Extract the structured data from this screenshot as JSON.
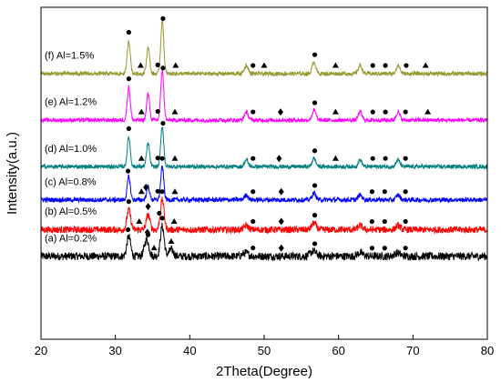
{
  "chart_data": {
    "type": "line",
    "title": "",
    "xlabel": "2Theta(Degree)",
    "ylabel": "Intensity(a.u.)",
    "xlim": [
      20,
      80
    ],
    "x_ticks": [
      20,
      30,
      40,
      50,
      60,
      70,
      80
    ],
    "y_ticks_shown": false,
    "grid": false,
    "legend": "none",
    "marker_legend": {
      "circle": "●",
      "triangle": "▲",
      "diamond": "◆"
    },
    "series": [
      {
        "name": "(a) Al=0.2%",
        "color": "#000000",
        "baseline": 0.25,
        "noise": 0.012,
        "peaks": [
          [
            31.8,
            0.06,
            0.25
          ],
          [
            34.2,
            0.05,
            0.3
          ],
          [
            36.3,
            0.09,
            0.25
          ],
          [
            37.5,
            0.02,
            0.3
          ],
          [
            47.5,
            0.01,
            0.4
          ],
          [
            56.6,
            0.015,
            0.4
          ],
          [
            62.9,
            0.01,
            0.4
          ],
          [
            67.9,
            0.01,
            0.4
          ]
        ],
        "markers": [
          [
            "circle",
            31.7
          ],
          [
            "diamond",
            34.3
          ],
          [
            "circle",
            34.4
          ],
          [
            "triangle",
            35.2
          ],
          [
            "circle",
            36.3
          ],
          [
            "triangle",
            37.5
          ],
          [
            "circle",
            48.5
          ],
          [
            "diamond",
            52.3
          ],
          [
            "circle",
            56.8
          ],
          [
            "circle",
            64.5
          ],
          [
            "circle",
            66.2
          ],
          [
            "circle",
            69.0
          ]
        ]
      },
      {
        "name": "(b) Al=0.5%",
        "color": "#ff0000",
        "baseline": 0.33,
        "noise": 0.01,
        "peaks": [
          [
            31.8,
            0.06,
            0.25
          ],
          [
            34.4,
            0.045,
            0.25
          ],
          [
            36.3,
            0.09,
            0.25
          ],
          [
            47.6,
            0.012,
            0.3
          ],
          [
            56.7,
            0.02,
            0.3
          ],
          [
            62.9,
            0.012,
            0.3
          ],
          [
            68.0,
            0.012,
            0.3
          ]
        ],
        "markers": [
          [
            "circle",
            31.8
          ],
          [
            "triangle",
            33.2
          ],
          [
            "diamond",
            34.4
          ],
          [
            "circle",
            35.9
          ],
          [
            "circle",
            36.3
          ],
          [
            "triangle",
            37.9
          ],
          [
            "circle",
            48.5
          ],
          [
            "diamond",
            52.3
          ],
          [
            "circle",
            56.8
          ],
          [
            "circle",
            64.5
          ],
          [
            "circle",
            66.2
          ],
          [
            "circle",
            69.0
          ]
        ]
      },
      {
        "name": "(c) Al=0.8%",
        "color": "#0000ff",
        "baseline": 0.42,
        "noise": 0.007,
        "peaks": [
          [
            31.8,
            0.07,
            0.2
          ],
          [
            34.4,
            0.04,
            0.2
          ],
          [
            36.3,
            0.1,
            0.2
          ],
          [
            47.6,
            0.015,
            0.25
          ],
          [
            56.7,
            0.02,
            0.25
          ],
          [
            62.9,
            0.015,
            0.25
          ],
          [
            68.0,
            0.015,
            0.25
          ]
        ],
        "markers": [
          [
            "circle",
            31.7
          ],
          [
            "triangle",
            33.5
          ],
          [
            "diamond",
            34.1
          ],
          [
            "circle",
            35.7
          ],
          [
            "circle",
            36.3
          ],
          [
            "triangle",
            38.0
          ],
          [
            "circle",
            48.5
          ],
          [
            "diamond",
            52.3
          ],
          [
            "circle",
            56.8
          ],
          [
            "circle",
            64.5
          ],
          [
            "circle",
            66.2
          ],
          [
            "circle",
            69.0
          ]
        ]
      },
      {
        "name": "(d) Al=1.0%",
        "color": "#008080",
        "baseline": 0.52,
        "noise": 0.006,
        "peaks": [
          [
            31.8,
            0.09,
            0.2
          ],
          [
            34.4,
            0.07,
            0.2
          ],
          [
            36.3,
            0.12,
            0.2
          ],
          [
            47.6,
            0.02,
            0.25
          ],
          [
            56.7,
            0.025,
            0.25
          ],
          [
            62.9,
            0.02,
            0.25
          ],
          [
            68.0,
            0.02,
            0.25
          ]
        ],
        "markers": [
          [
            "circle",
            31.8
          ],
          [
            "triangle",
            33.5
          ],
          [
            "circle",
            35.7
          ],
          [
            "circle",
            36.4
          ],
          [
            "triangle",
            38.0
          ],
          [
            "circle",
            48.5
          ],
          [
            "diamond",
            52.0
          ],
          [
            "circle",
            56.8
          ],
          [
            "triangle",
            59.6
          ],
          [
            "circle",
            64.6
          ],
          [
            "circle",
            66.3
          ],
          [
            "circle",
            69.0
          ]
        ]
      },
      {
        "name": "(e) Al=1.2%",
        "color": "#ff00ff",
        "baseline": 0.66,
        "noise": 0.006,
        "peaks": [
          [
            31.8,
            0.1,
            0.2
          ],
          [
            34.4,
            0.08,
            0.2
          ],
          [
            36.3,
            0.15,
            0.2
          ],
          [
            47.6,
            0.025,
            0.25
          ],
          [
            56.7,
            0.03,
            0.25
          ],
          [
            62.9,
            0.025,
            0.25
          ],
          [
            68.0,
            0.025,
            0.25
          ]
        ],
        "markers": [
          [
            "circle",
            31.8
          ],
          [
            "triangle",
            33.5
          ],
          [
            "circle",
            35.7
          ],
          [
            "circle",
            36.4
          ],
          [
            "triangle",
            38.0
          ],
          [
            "circle",
            48.5
          ],
          [
            "diamond",
            52.2
          ],
          [
            "circle",
            56.8
          ],
          [
            "triangle",
            59.6
          ],
          [
            "circle",
            64.6
          ],
          [
            "circle",
            66.3
          ],
          [
            "circle",
            69.0
          ],
          [
            "triangle",
            72.0
          ]
        ]
      },
      {
        "name": "(f) Al=1.5%",
        "color": "#999933",
        "baseline": 0.8,
        "noise": 0.006,
        "peaks": [
          [
            31.8,
            0.1,
            0.2
          ],
          [
            34.4,
            0.08,
            0.2
          ],
          [
            36.3,
            0.16,
            0.2
          ],
          [
            47.6,
            0.025,
            0.25
          ],
          [
            56.7,
            0.035,
            0.25
          ],
          [
            62.9,
            0.025,
            0.25
          ],
          [
            68.0,
            0.025,
            0.25
          ]
        ],
        "markers": [
          [
            "circle",
            31.8
          ],
          [
            "triangle",
            33.4
          ],
          [
            "circle",
            35.7
          ],
          [
            "circle",
            36.4
          ],
          [
            "triangle",
            38.1
          ],
          [
            "circle",
            48.5
          ],
          [
            "triangle",
            50.0
          ],
          [
            "circle",
            56.8
          ],
          [
            "triangle",
            59.6
          ],
          [
            "circle",
            64.6
          ],
          [
            "circle",
            66.3
          ],
          [
            "circle",
            69.1
          ],
          [
            "triangle",
            71.7
          ]
        ]
      }
    ]
  }
}
